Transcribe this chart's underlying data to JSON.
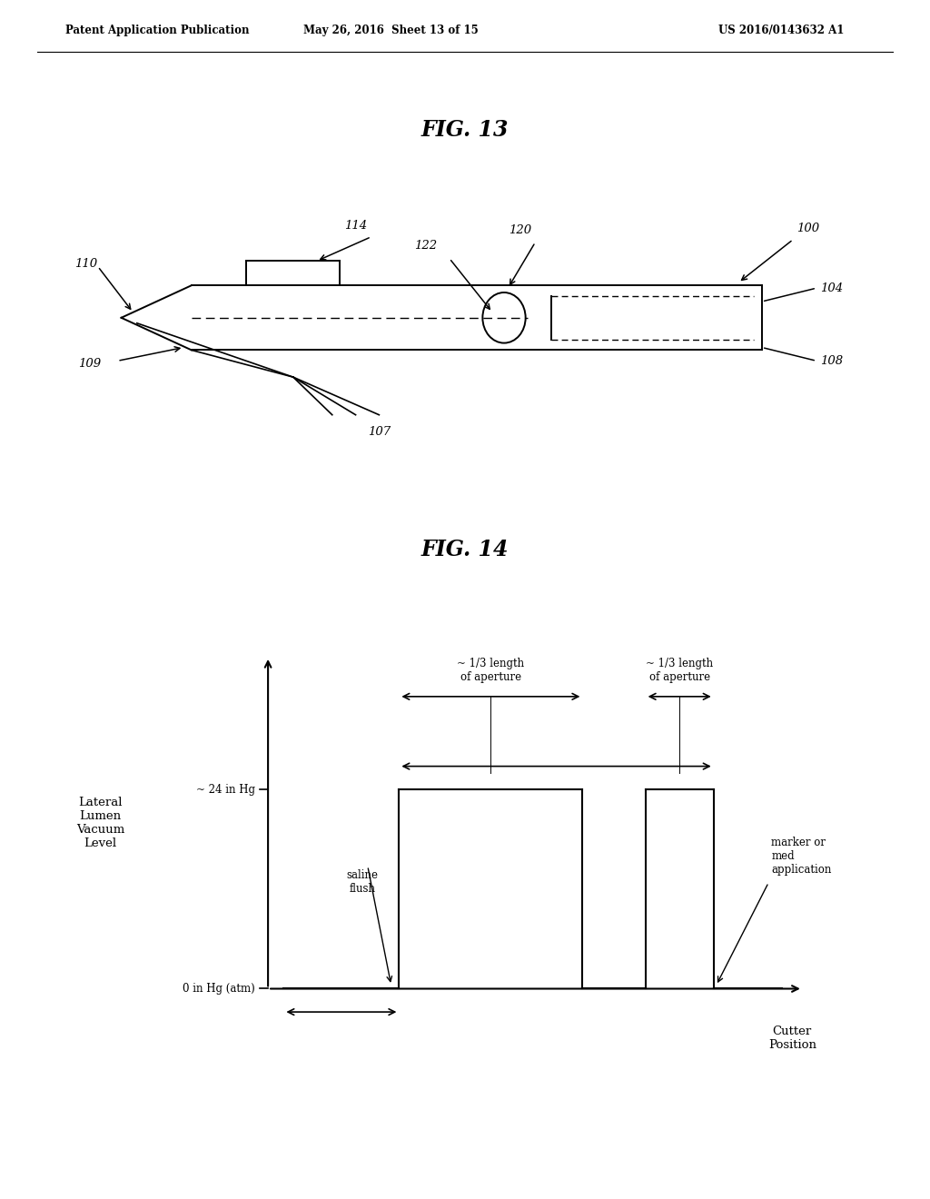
{
  "bg_color": "#ffffff",
  "header_left": "Patent Application Publication",
  "header_center": "May 26, 2016  Sheet 13 of 15",
  "header_right": "US 2016/0143632 A1",
  "fig13_title": "FIG. 13",
  "fig14_title": "FIG. 14",
  "fig14_ylabel": "Lateral\nLumen\nVacuum\nLevel",
  "fig14_xlabel": "Cutter\nPosition",
  "fig14_y_tick_0": "0 in Hg (atm)",
  "fig14_y_tick_24": "~ 24 in Hg",
  "fig14_annotation_left": "~ 1/3 length\nof aperture",
  "fig14_annotation_right": "~ 1/3 length\nof aperture",
  "fig14_annotation_saline": "saline\nflush",
  "fig14_annotation_marker": "marker or\nmed\napplication"
}
